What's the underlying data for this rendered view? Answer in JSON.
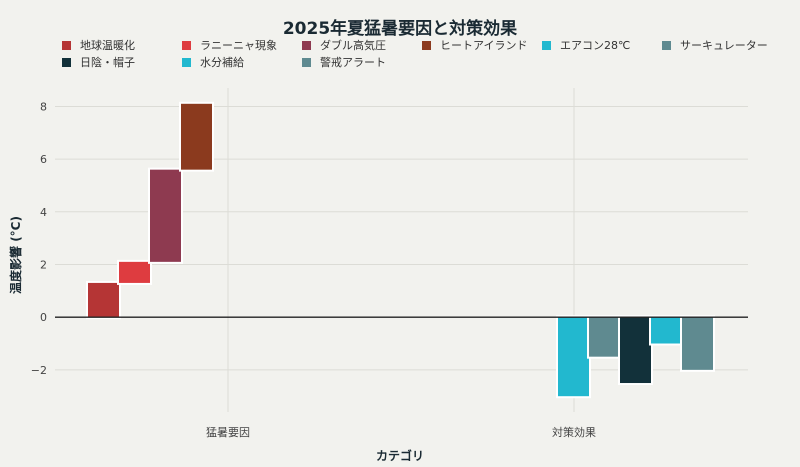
{
  "chart_data": {
    "type": "bar",
    "subtype": "waterfall",
    "title": "2025年夏猛暑要因と対策効果",
    "xlabel": "カテゴリ",
    "ylabel": "温度影響 (°C)",
    "categories": [
      "猛暑要因",
      "対策効果"
    ],
    "ylim": [
      -3.6,
      8.7
    ],
    "yticks": [
      -2,
      0,
      2,
      4,
      6,
      8
    ],
    "ytick_labels": [
      "−2",
      "0",
      "2",
      "4",
      "6",
      "8"
    ],
    "grid": true,
    "legend_position": "top",
    "series": [
      {
        "name": "地球温暖化",
        "category": "猛暑要因",
        "value": 1.3,
        "base": 0,
        "color": "#b53535"
      },
      {
        "name": "ラニーニャ現象",
        "category": "猛暑要因",
        "value": 0.8,
        "base": 1.3,
        "color": "#de3c40"
      },
      {
        "name": "ダブル高気圧",
        "category": "猛暑要因",
        "value": 3.5,
        "base": 2.1,
        "color": "#8e3a50"
      },
      {
        "name": "ヒートアイランド",
        "category": "猛暑要因",
        "value": 2.5,
        "base": 5.6,
        "color": "#8b3a1e"
      },
      {
        "name": "エアコン28℃",
        "category": "対策効果",
        "value": -3.0,
        "base": 0,
        "color": "#22b8cf"
      },
      {
        "name": "サーキュレーター",
        "category": "対策効果",
        "value": -1.5,
        "base": 0,
        "color": "#5f8a90"
      },
      {
        "name": "日陰・帽子",
        "category": "対策効果",
        "value": -2.5,
        "base": 0,
        "color": "#12313a"
      },
      {
        "name": "水分補給",
        "category": "対策効果",
        "value": -1.0,
        "base": 0,
        "color": "#22b8cf"
      },
      {
        "name": "警戒アラート",
        "category": "対策効果",
        "value": -2.0,
        "base": 0,
        "color": "#5f8a90"
      }
    ]
  }
}
